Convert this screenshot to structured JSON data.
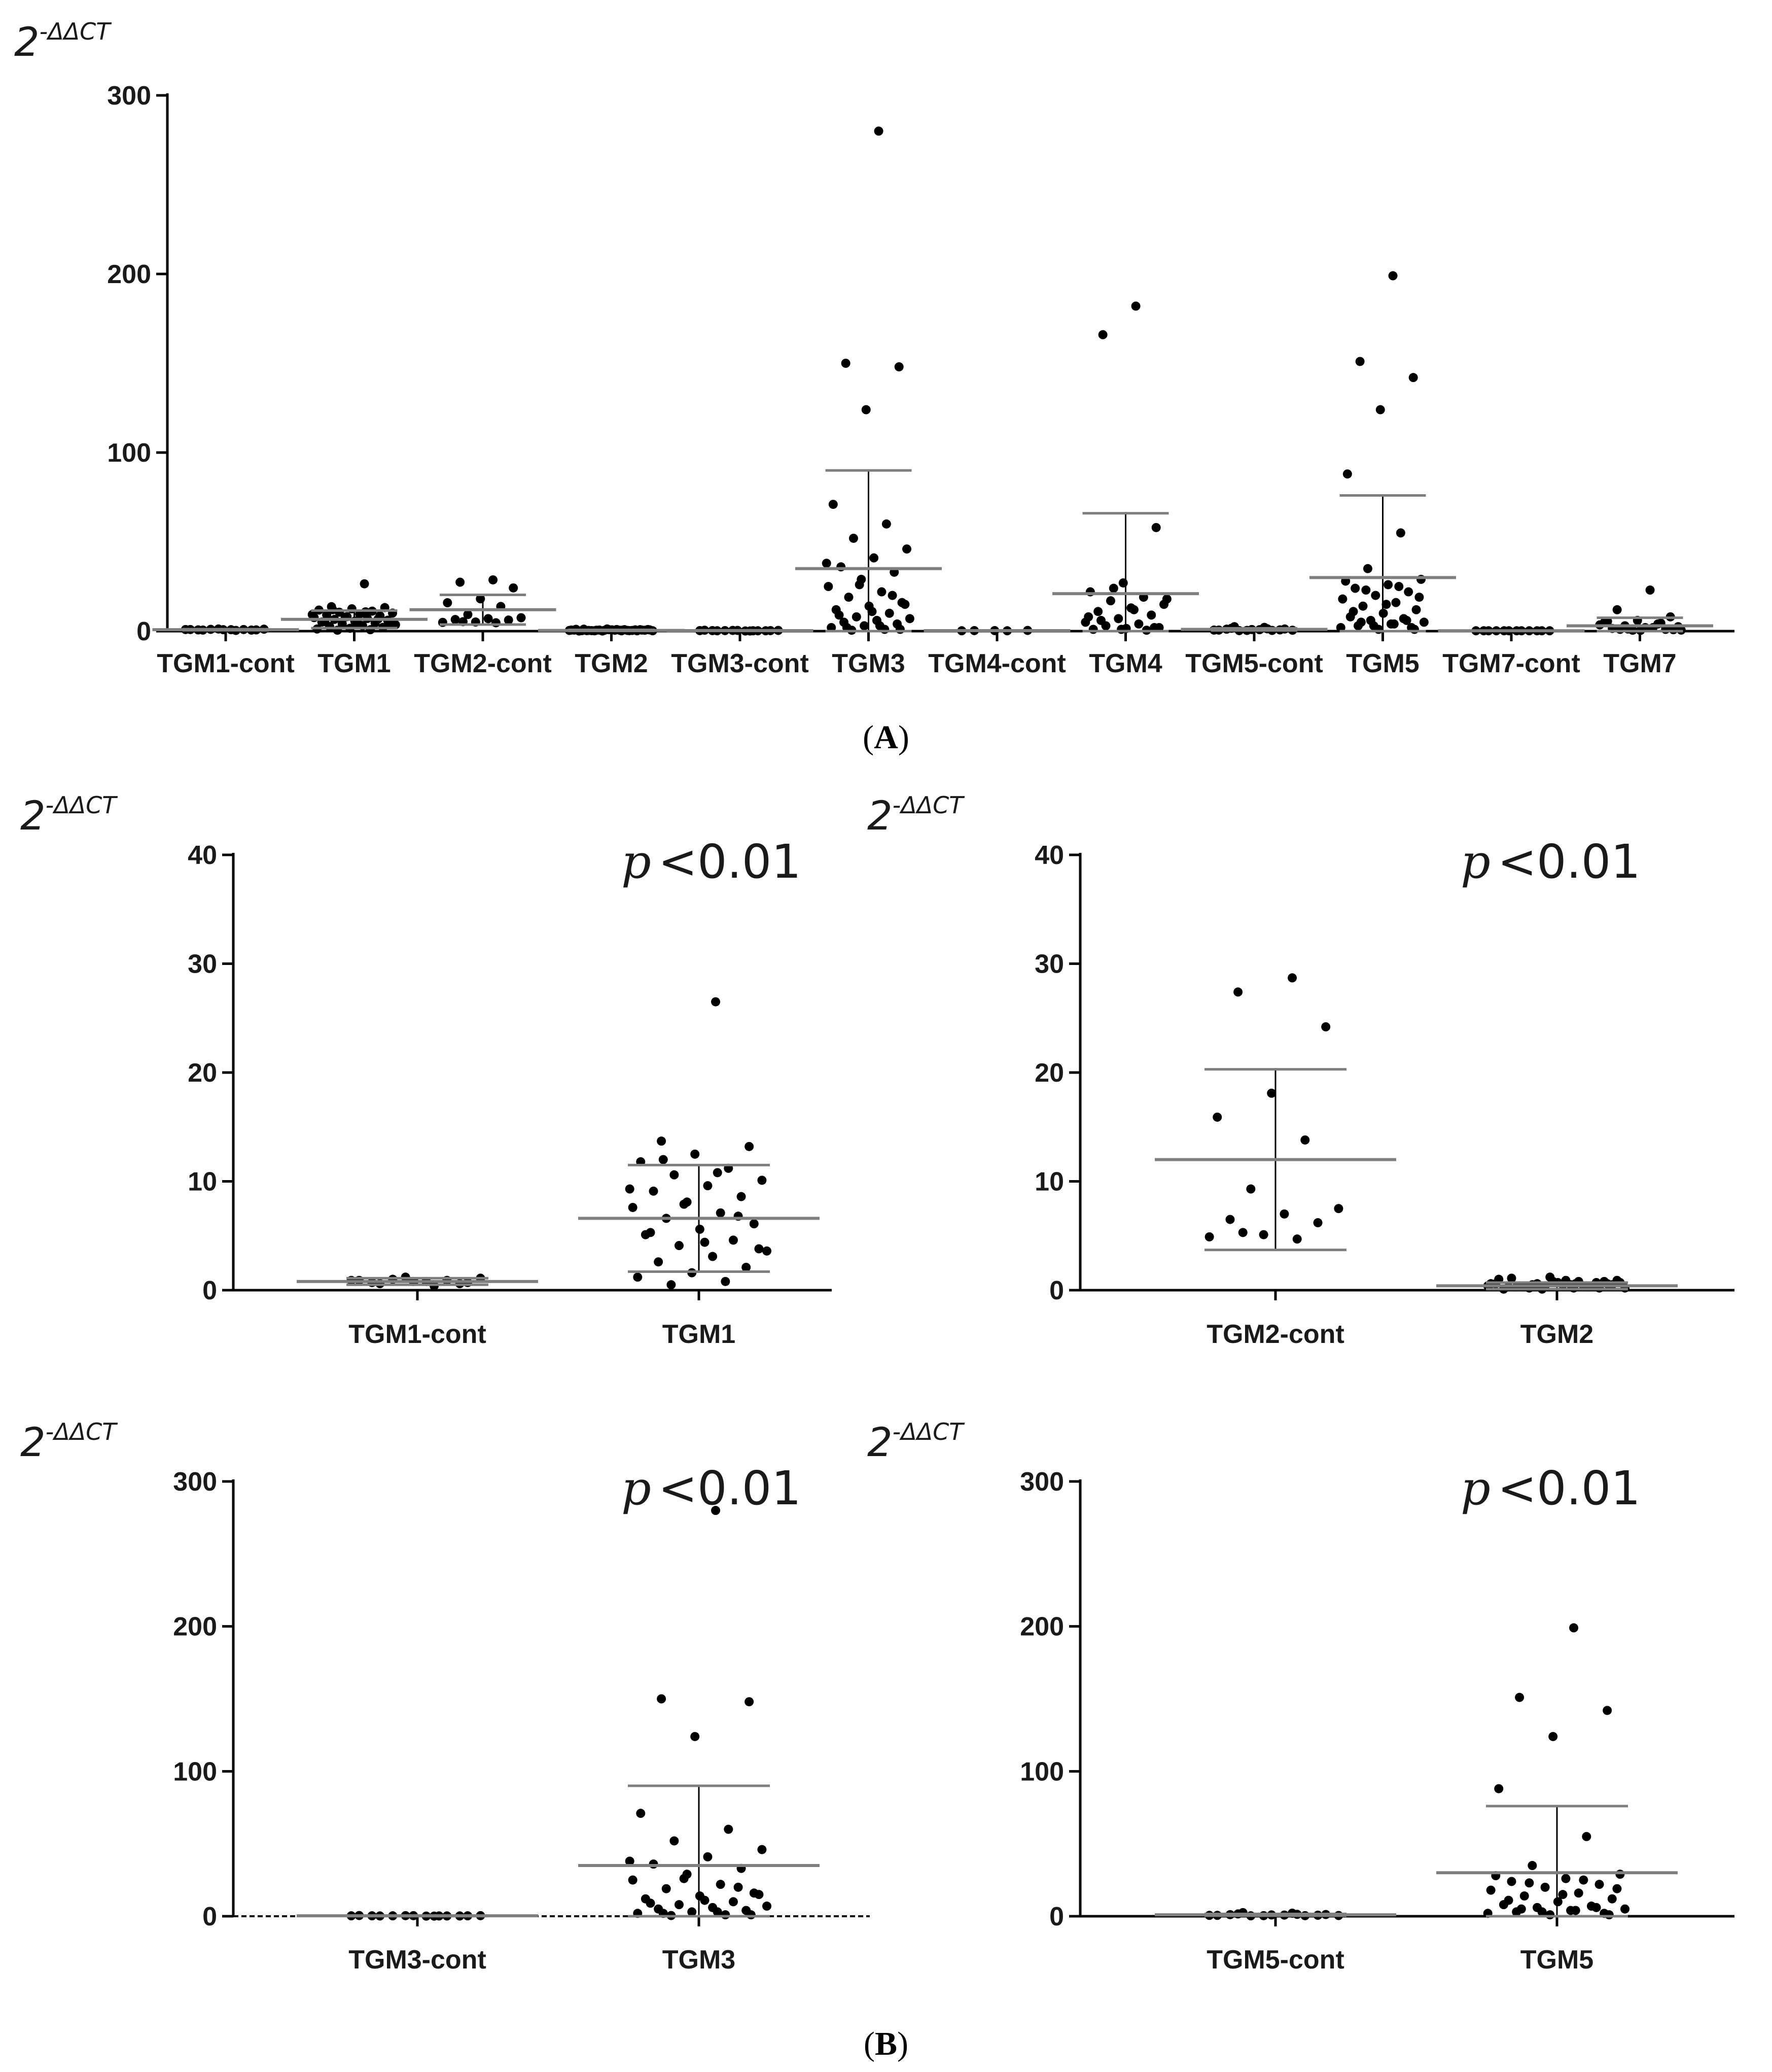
{
  "colors": {
    "points": "#000000",
    "mean_line": "#7f7f7f",
    "sd_bar": "#000000",
    "axis": "#000000"
  },
  "panel_labels": {
    "A": "A",
    "B": "B"
  },
  "y_axis_label": {
    "base": "2",
    "exponent": "-ΔΔCT"
  },
  "chart_data": [
    {
      "id": "A",
      "type": "scatter",
      "subtype": "dot plot with mean and standard deviation",
      "ylim": [
        0,
        300
      ],
      "yticks": [
        0,
        100,
        200,
        300
      ],
      "categories": [
        "TGM1-cont",
        "TGM1",
        "TGM2-cont",
        "TGM2",
        "TGM3-cont",
        "TGM3",
        "TGM4-cont",
        "TGM4",
        "TGM5-cont",
        "TGM5",
        "TGM7-cont",
        "TGM7"
      ],
      "groups": [
        {
          "name": "TGM1-cont",
          "mean": 0.8,
          "sd": 0.3,
          "points": [
            0.4,
            0.6,
            0.7,
            0.8,
            0.9,
            0.9,
            1.0,
            1.1,
            0.8,
            0.7,
            0.6,
            1.2,
            0.9
          ]
        },
        {
          "name": "TGM1",
          "mean": 6.6,
          "sd": 4.9,
          "points": [
            26.5,
            13.7,
            13.2,
            12.5,
            11.8,
            11.2,
            10.6,
            10.1,
            9.6,
            9.1,
            8.6,
            8.1,
            7.6,
            7.1,
            6.6,
            6.1,
            5.6,
            5.1,
            4.6,
            4.1,
            3.6,
            3.1,
            2.6,
            2.1,
            1.6,
            1.2,
            0.8,
            0.5,
            3.8,
            4.4,
            5.3,
            6.8,
            7.9,
            9.3,
            10.8,
            12.0
          ]
        },
        {
          "name": "TGM2-cont",
          "mean": 12.0,
          "sd": 8.3,
          "points": [
            28.7,
            27.4,
            24.2,
            18.1,
            15.9,
            13.8,
            9.3,
            7.5,
            7.0,
            6.5,
            6.2,
            5.1,
            4.9,
            4.7,
            5.3
          ]
        },
        {
          "name": "TGM2",
          "mean": 0.4,
          "sd": 0.3,
          "points": [
            0.2,
            0.4,
            0.6,
            0.8,
            1.0,
            0.3,
            0.5,
            0.7,
            0.9,
            1.1,
            0.2,
            0.4,
            0.6,
            0.8,
            0.3,
            0.5,
            0.7,
            0.1,
            0.4,
            0.6,
            0.2,
            0.5,
            0.3,
            0.8,
            1.2,
            0.6,
            0.4,
            0.2,
            0.9,
            0.5,
            0.3,
            0.7,
            0.1,
            0.4,
            0.6
          ]
        },
        {
          "name": "TGM3-cont",
          "mean": 0.3,
          "sd": 0.2,
          "points": [
            0.1,
            0.2,
            0.3,
            0.4,
            0.5,
            0.2,
            0.3,
            0.4,
            0.1,
            0.3,
            0.2,
            0.4,
            0.3,
            0.2
          ]
        },
        {
          "name": "TGM3",
          "mean": 35,
          "sd": 55,
          "points": [
            280,
            150,
            148,
            124,
            71,
            60,
            52,
            46,
            41,
            36,
            33,
            29,
            25,
            22,
            19,
            16,
            14,
            12,
            10,
            8,
            7,
            6,
            5,
            4,
            3,
            2,
            1,
            0.5,
            15,
            11,
            9,
            20,
            26,
            38,
            3,
            2,
            1
          ]
        },
        {
          "name": "TGM4-cont",
          "mean": 0.3,
          "sd": 0.1,
          "points": [
            0.2,
            0.3,
            0.4,
            0.3,
            0.2
          ]
        },
        {
          "name": "TGM4",
          "mean": 21,
          "sd": 45,
          "points": [
            182,
            166,
            58,
            27,
            22,
            19,
            17,
            15,
            13,
            11,
            9,
            7,
            5,
            4,
            3,
            2,
            1.5,
            1,
            0.5,
            24,
            18,
            12,
            6,
            2,
            1,
            8
          ]
        },
        {
          "name": "TGM5-cont",
          "mean": 1.0,
          "sd": 0.6,
          "points": [
            2.1,
            1.6,
            1.2,
            0.9,
            0.6,
            0.4,
            0.3,
            0.5,
            0.8,
            1.1,
            0.7,
            0.4,
            0.6,
            1.3,
            2.5
          ]
        },
        {
          "name": "TGM5",
          "mean": 30,
          "sd": 46,
          "points": [
            199,
            151,
            142,
            124,
            88,
            55,
            35,
            29,
            26,
            24,
            22,
            20,
            18,
            16,
            14,
            12,
            10,
            8,
            7,
            6,
            5,
            4,
            3,
            2,
            1,
            28,
            25,
            23,
            19,
            15,
            11,
            6,
            3,
            2,
            4,
            5,
            1
          ]
        },
        {
          "name": "TGM7-cont",
          "mean": 0.2,
          "sd": 0.1,
          "points": [
            0.2,
            0.2,
            0.2,
            0.2,
            0.2,
            0.2,
            0.2,
            0.2,
            0.2,
            0.2,
            0.2,
            0.2
          ]
        },
        {
          "name": "TGM7",
          "mean": 3.0,
          "sd": 4.5,
          "points": [
            23,
            12,
            8,
            6,
            5,
            4,
            3,
            2.5,
            2,
            1.5,
            1,
            0.5,
            3.5,
            2,
            1,
            0.8,
            0.4,
            5.5,
            4.5,
            1.2,
            0.6
          ]
        }
      ]
    },
    {
      "id": "B1",
      "type": "scatter",
      "subtype": "dot plot with mean and standard deviation",
      "ylim": [
        0,
        40
      ],
      "yticks": [
        0,
        10,
        20,
        30,
        40
      ],
      "annotation": {
        "p": "p",
        "value": "<0.01"
      },
      "categories": [
        "TGM1-cont",
        "TGM1"
      ],
      "groups": [
        {
          "name": "TGM1-cont",
          "mean": 0.8,
          "sd": 0.3,
          "points": [
            0.4,
            0.6,
            0.7,
            0.8,
            0.9,
            0.9,
            1.0,
            1.1,
            0.8,
            0.7,
            0.6,
            1.2,
            0.9
          ]
        },
        {
          "name": "TGM1",
          "mean": 6.6,
          "sd": 4.9,
          "points": [
            26.5,
            13.7,
            13.2,
            12.5,
            11.8,
            11.2,
            10.6,
            10.1,
            9.6,
            9.1,
            8.6,
            8.1,
            7.6,
            7.1,
            6.6,
            6.1,
            5.6,
            5.1,
            4.6,
            4.1,
            3.6,
            3.1,
            2.6,
            2.1,
            1.6,
            1.2,
            0.8,
            0.5,
            3.8,
            4.4,
            5.3,
            6.8,
            7.9,
            9.3,
            10.8,
            12.0
          ]
        }
      ]
    },
    {
      "id": "B2",
      "type": "scatter",
      "subtype": "dot plot with mean and standard deviation",
      "ylim": [
        0,
        40
      ],
      "yticks": [
        0,
        10,
        20,
        30,
        40
      ],
      "annotation": {
        "p": "p",
        "value": "<0.01"
      },
      "categories": [
        "TGM2-cont",
        "TGM2"
      ],
      "groups": [
        {
          "name": "TGM2-cont",
          "mean": 12.0,
          "sd": 8.3,
          "points": [
            28.7,
            27.4,
            24.2,
            18.1,
            15.9,
            13.8,
            9.3,
            7.5,
            7.0,
            6.5,
            6.2,
            5.1,
            4.9,
            4.7,
            5.3
          ]
        },
        {
          "name": "TGM2",
          "mean": 0.4,
          "sd": 0.3,
          "points": [
            0.2,
            0.4,
            0.6,
            0.8,
            1.0,
            0.3,
            0.5,
            0.7,
            0.9,
            1.1,
            0.2,
            0.4,
            0.6,
            0.8,
            0.3,
            0.5,
            0.7,
            0.1,
            0.4,
            0.6,
            0.2,
            0.5,
            0.3,
            0.8,
            1.2,
            0.6,
            0.4,
            0.2,
            0.9,
            0.5,
            0.3,
            0.7,
            0.1,
            0.4,
            0.6
          ]
        }
      ]
    },
    {
      "id": "B3",
      "type": "scatter",
      "subtype": "dot plot with mean and standard deviation",
      "ylim": [
        0,
        300
      ],
      "yticks": [
        0,
        100,
        200,
        300
      ],
      "annotation": {
        "p": "p",
        "value": "<0.01"
      },
      "categories": [
        "TGM3-cont",
        "TGM3"
      ],
      "groups": [
        {
          "name": "TGM3-cont",
          "mean": 0.3,
          "sd": 0.2,
          "points": [
            0.1,
            0.2,
            0.3,
            0.4,
            0.5,
            0.2,
            0.3,
            0.4,
            0.1,
            0.3,
            0.2,
            0.4,
            0.3,
            0.2
          ]
        },
        {
          "name": "TGM3",
          "mean": 35,
          "sd": 55,
          "points": [
            280,
            150,
            148,
            124,
            71,
            60,
            52,
            46,
            41,
            36,
            33,
            29,
            25,
            22,
            19,
            16,
            14,
            12,
            10,
            8,
            7,
            6,
            5,
            4,
            3,
            2,
            1,
            0.5,
            15,
            11,
            9,
            20,
            26,
            38,
            3,
            2,
            1
          ]
        }
      ]
    },
    {
      "id": "B4",
      "type": "scatter",
      "subtype": "dot plot with mean and standard deviation",
      "ylim": [
        0,
        300
      ],
      "yticks": [
        0,
        100,
        200,
        300
      ],
      "annotation": {
        "p": "p",
        "value": "<0.01"
      },
      "categories": [
        "TGM5-cont",
        "TGM5"
      ],
      "groups": [
        {
          "name": "TGM5-cont",
          "mean": 1.0,
          "sd": 0.6,
          "points": [
            2.1,
            1.6,
            1.2,
            0.9,
            0.6,
            0.4,
            0.3,
            0.5,
            0.8,
            1.1,
            0.7,
            0.4,
            0.6,
            1.3,
            2.5
          ]
        },
        {
          "name": "TGM5",
          "mean": 30,
          "sd": 46,
          "points": [
            199,
            151,
            142,
            124,
            88,
            55,
            35,
            29,
            26,
            24,
            22,
            20,
            18,
            16,
            14,
            12,
            10,
            8,
            7,
            6,
            5,
            4,
            3,
            2,
            1,
            28,
            25,
            23,
            19,
            15,
            11,
            6,
            3,
            2,
            4,
            5,
            1
          ]
        }
      ]
    }
  ]
}
